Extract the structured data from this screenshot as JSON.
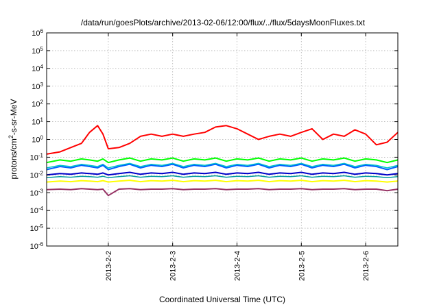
{
  "chart_data": {
    "type": "line",
    "title": "/data/run/goesPlots/archive/2013-02-06/12:00/flux/../flux/5daysMoonFluxes.txt",
    "xlabel": "Coordinated Universal Time (UTC)",
    "ylabel": {
      "base": "protons/cm",
      "sup": "2",
      "rest": "-s-sr-MeV"
    },
    "yscale": "log",
    "ylim": [
      1e-06,
      1000000.0
    ],
    "xlim": [
      "2013-02-01T01:00",
      "2013-02-06T12:00"
    ],
    "grid": true,
    "legend": "none",
    "x_ticks": [
      "2013-2-2",
      "2013-2-3",
      "2013-2-4",
      "2013-2-5",
      "2013-2-6"
    ],
    "y_ticks": [
      {
        "base": "10",
        "exp": "6"
      },
      {
        "base": "10",
        "exp": "5"
      },
      {
        "base": "10",
        "exp": "4"
      },
      {
        "base": "10",
        "exp": "3"
      },
      {
        "base": "10",
        "exp": "2"
      },
      {
        "base": "10",
        "exp": "1"
      },
      {
        "base": "10",
        "exp": "0"
      },
      {
        "base": "10",
        "exp": "-1"
      },
      {
        "base": "10",
        "exp": "-2"
      },
      {
        "base": "10",
        "exp": "-3"
      },
      {
        "base": "10",
        "exp": "-4"
      },
      {
        "base": "10",
        "exp": "-5"
      },
      {
        "base": "10",
        "exp": "-6"
      }
    ],
    "x": [
      "2013-02-01T01:00",
      "2013-02-01T06:00",
      "2013-02-01T10:00",
      "2013-02-01T14:00",
      "2013-02-01T17:00",
      "2013-02-01T20:00",
      "2013-02-01T22:00",
      "2013-02-02T00:00",
      "2013-02-02T04:00",
      "2013-02-02T08:00",
      "2013-02-02T12:00",
      "2013-02-02T16:00",
      "2013-02-02T20:00",
      "2013-02-03T00:00",
      "2013-02-03T04:00",
      "2013-02-03T08:00",
      "2013-02-03T12:00",
      "2013-02-03T16:00",
      "2013-02-03T20:00",
      "2013-02-04T00:00",
      "2013-02-04T04:00",
      "2013-02-04T08:00",
      "2013-02-04T12:00",
      "2013-02-04T16:00",
      "2013-02-04T20:00",
      "2013-02-05T00:00",
      "2013-02-05T04:00",
      "2013-02-05T08:00",
      "2013-02-05T12:00",
      "2013-02-05T16:00",
      "2013-02-05T20:00",
      "2013-02-06T00:00",
      "2013-02-06T04:00",
      "2013-02-06T08:00",
      "2013-02-06T12:00"
    ],
    "series": [
      {
        "color": "#ff0000",
        "width": 2,
        "values": [
          0.15,
          0.2,
          0.35,
          0.6,
          2.5,
          6.0,
          2.0,
          0.3,
          0.35,
          0.6,
          1.5,
          2.0,
          1.5,
          2.0,
          1.5,
          2.0,
          2.5,
          5.0,
          6.0,
          4.0,
          2.0,
          1.0,
          1.5,
          2.0,
          1.5,
          2.5,
          4.0,
          1.0,
          2.0,
          1.5,
          3.5,
          2.0,
          0.5,
          0.7,
          2.5
        ]
      },
      {
        "color": "#00ff00",
        "width": 2,
        "values": [
          0.05,
          0.07,
          0.06,
          0.08,
          0.07,
          0.06,
          0.08,
          0.05,
          0.07,
          0.09,
          0.06,
          0.08,
          0.07,
          0.09,
          0.06,
          0.08,
          0.07,
          0.09,
          0.06,
          0.08,
          0.07,
          0.09,
          0.06,
          0.08,
          0.07,
          0.09,
          0.06,
          0.08,
          0.07,
          0.09,
          0.06,
          0.08,
          0.07,
          0.05,
          0.07
        ]
      },
      {
        "color": "#00c8c8",
        "width": 1.5,
        "values": [
          0.025,
          0.035,
          0.03,
          0.04,
          0.035,
          0.03,
          0.04,
          0.025,
          0.035,
          0.045,
          0.03,
          0.04,
          0.035,
          0.045,
          0.03,
          0.04,
          0.035,
          0.045,
          0.03,
          0.04,
          0.035,
          0.045,
          0.03,
          0.04,
          0.035,
          0.045,
          0.03,
          0.04,
          0.035,
          0.045,
          0.03,
          0.04,
          0.035,
          0.025,
          0.035
        ]
      },
      {
        "color": "#0064ff",
        "width": 2,
        "values": [
          0.02,
          0.03,
          0.025,
          0.035,
          0.03,
          0.025,
          0.035,
          0.02,
          0.03,
          0.04,
          0.025,
          0.035,
          0.03,
          0.04,
          0.025,
          0.035,
          0.03,
          0.04,
          0.025,
          0.035,
          0.03,
          0.04,
          0.025,
          0.035,
          0.03,
          0.04,
          0.025,
          0.035,
          0.03,
          0.04,
          0.025,
          0.035,
          0.03,
          0.02,
          0.03
        ]
      },
      {
        "color": "#0000c8",
        "width": 2,
        "values": [
          0.01,
          0.012,
          0.011,
          0.013,
          0.012,
          0.011,
          0.013,
          0.01,
          0.012,
          0.014,
          0.011,
          0.013,
          0.012,
          0.014,
          0.011,
          0.013,
          0.012,
          0.014,
          0.011,
          0.013,
          0.012,
          0.014,
          0.011,
          0.013,
          0.012,
          0.014,
          0.011,
          0.013,
          0.012,
          0.014,
          0.011,
          0.013,
          0.012,
          0.01,
          0.012
        ]
      },
      {
        "color": "#009b9b",
        "width": 1.5,
        "values": [
          0.007,
          0.008,
          0.0075,
          0.0085,
          0.008,
          0.0075,
          0.0085,
          0.007,
          0.008,
          0.009,
          0.0075,
          0.0085,
          0.008,
          0.009,
          0.0075,
          0.0085,
          0.008,
          0.009,
          0.0075,
          0.0085,
          0.008,
          0.009,
          0.0075,
          0.0085,
          0.008,
          0.009,
          0.0075,
          0.0085,
          0.008,
          0.009,
          0.0075,
          0.0085,
          0.008,
          0.007,
          0.008
        ]
      },
      {
        "color": "#ffff00",
        "width": 2,
        "values": [
          0.004,
          0.0045,
          0.0042,
          0.0048,
          0.0045,
          0.0042,
          0.0048,
          0.004,
          0.0045,
          0.005,
          0.0042,
          0.0048,
          0.0045,
          0.005,
          0.0042,
          0.0048,
          0.0045,
          0.005,
          0.0042,
          0.0048,
          0.0045,
          0.005,
          0.0042,
          0.0048,
          0.0045,
          0.005,
          0.0042,
          0.0048,
          0.0045,
          0.005,
          0.0042,
          0.0048,
          0.0045,
          0.004,
          0.0045
        ]
      },
      {
        "color": "#963264",
        "width": 2,
        "values": [
          0.0015,
          0.0016,
          0.0015,
          0.0017,
          0.0016,
          0.0015,
          0.0016,
          0.0007,
          0.0016,
          0.0017,
          0.0015,
          0.0016,
          0.0016,
          0.0017,
          0.0015,
          0.0016,
          0.0016,
          0.0017,
          0.0015,
          0.0016,
          0.0016,
          0.0017,
          0.0015,
          0.0016,
          0.0016,
          0.0017,
          0.0015,
          0.0016,
          0.0016,
          0.0017,
          0.0015,
          0.0016,
          0.0016,
          0.0013,
          0.0016
        ]
      }
    ]
  }
}
